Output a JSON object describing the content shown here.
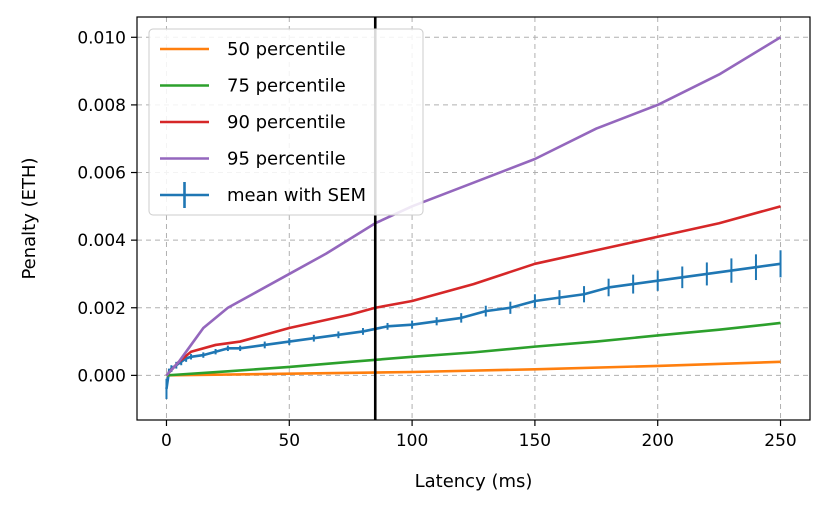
{
  "chart_data": {
    "type": "line",
    "xlabel": "Latency (ms)",
    "ylabel": "Penalty (ETH)",
    "xlim": [
      -12,
      262
    ],
    "ylim": [
      -0.00132,
      0.0106
    ],
    "x_ticks": [
      0,
      50,
      100,
      150,
      200,
      250
    ],
    "x_tick_labels": [
      "0",
      "50",
      "100",
      "150",
      "200",
      "250"
    ],
    "y_ticks": [
      0.0,
      0.002,
      0.004,
      0.006,
      0.008,
      0.01
    ],
    "y_tick_labels": [
      "0.000",
      "0.002",
      "0.004",
      "0.006",
      "0.008",
      "0.010"
    ],
    "grid": true,
    "legend_position": "top-left",
    "vertical_line": {
      "x": 85,
      "color": "#000000"
    },
    "series": [
      {
        "name": "50 percentile",
        "color": "#ff7f0e",
        "x": [
          0,
          50,
          100,
          150,
          200,
          250
        ],
        "y": [
          0.0,
          5e-05,
          0.0001,
          0.00018,
          0.00028,
          0.0004
        ]
      },
      {
        "name": "75 percentile",
        "color": "#2ca02c",
        "x": [
          0,
          25,
          50,
          75,
          100,
          125,
          150,
          175,
          200,
          225,
          250
        ],
        "y": [
          0.0,
          0.00012,
          0.00025,
          0.0004,
          0.00055,
          0.00068,
          0.00085,
          0.001,
          0.00118,
          0.00135,
          0.00155
        ]
      },
      {
        "name": "90 percentile",
        "color": "#d62728",
        "x": [
          0,
          5,
          10,
          20,
          30,
          50,
          75,
          85,
          100,
          125,
          150,
          175,
          200,
          225,
          250
        ],
        "y": [
          0.0,
          0.0004,
          0.0007,
          0.0009,
          0.001,
          0.0014,
          0.0018,
          0.002,
          0.0022,
          0.0027,
          0.0033,
          0.0037,
          0.0041,
          0.0045,
          0.005
        ]
      },
      {
        "name": "95 percentile",
        "color": "#9467bd",
        "x": [
          0,
          5,
          10,
          15,
          25,
          35,
          50,
          65,
          85,
          100,
          125,
          150,
          175,
          200,
          225,
          250
        ],
        "y": [
          0.0,
          0.0004,
          0.0009,
          0.0014,
          0.002,
          0.0024,
          0.003,
          0.0036,
          0.0045,
          0.005,
          0.0057,
          0.0064,
          0.0073,
          0.008,
          0.0089,
          0.01
        ]
      },
      {
        "name": "mean with SEM",
        "color": "#1f77b4",
        "x": [
          0,
          1,
          2,
          4,
          6,
          8,
          10,
          15,
          20,
          25,
          30,
          40,
          50,
          60,
          70,
          80,
          90,
          100,
          110,
          120,
          130,
          140,
          150,
          160,
          170,
          180,
          190,
          200,
          210,
          220,
          230,
          240,
          250
        ],
        "y": [
          -0.0004,
          0.0001,
          0.0002,
          0.0003,
          0.0004,
          0.0005,
          0.00055,
          0.0006,
          0.0007,
          0.0008,
          0.0008,
          0.0009,
          0.001,
          0.0011,
          0.0012,
          0.0013,
          0.00145,
          0.0015,
          0.0016,
          0.0017,
          0.0019,
          0.002,
          0.0022,
          0.0023,
          0.0024,
          0.0026,
          0.0027,
          0.0028,
          0.0029,
          0.003,
          0.0031,
          0.0032,
          0.0033
        ],
        "sem": [
          0.0003,
          0.0001,
          0.0001,
          0.0001,
          0.0001,
          0.0001,
          8e-05,
          8e-05,
          8e-05,
          8e-05,
          8e-05,
          0.0001,
          0.0001,
          0.0001,
          0.0001,
          0.0001,
          0.0001,
          0.00012,
          0.00012,
          0.00014,
          0.00016,
          0.00018,
          0.0002,
          0.00022,
          0.00024,
          0.00026,
          0.00028,
          0.0003,
          0.00032,
          0.00034,
          0.00036,
          0.00038,
          0.0004
        ]
      }
    ]
  }
}
